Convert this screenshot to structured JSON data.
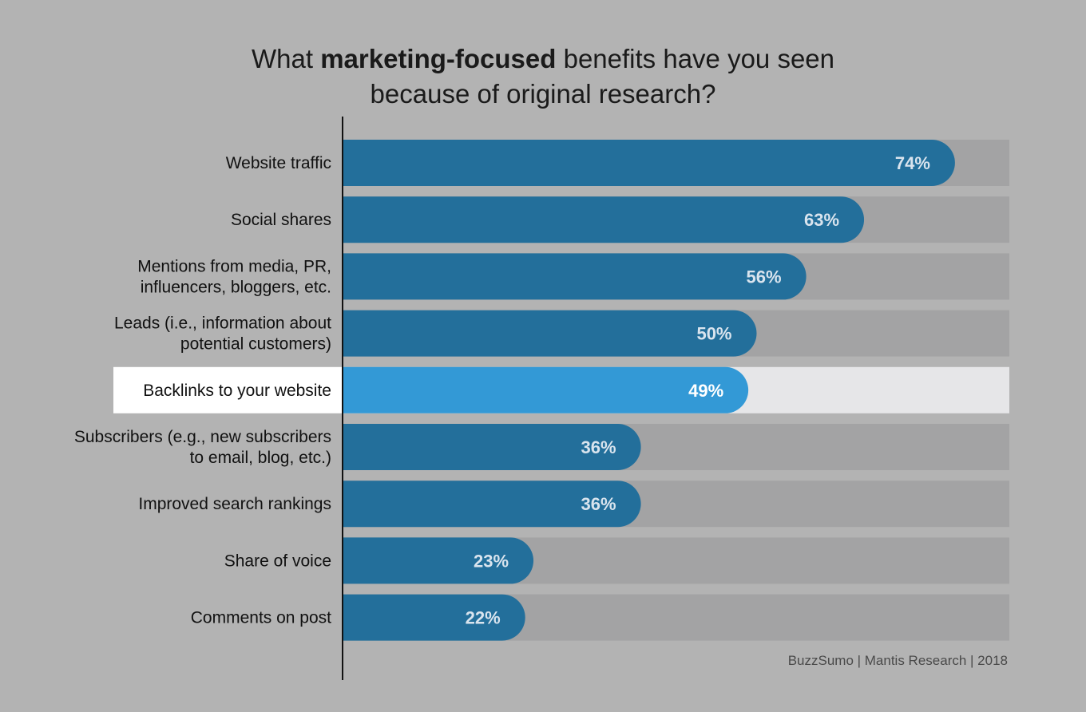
{
  "title": {
    "prefix": "What ",
    "bold": "marketing-focused",
    "suffix": " benefits have you seen",
    "line2": "because of original research?"
  },
  "source": "BuzzSumo | Mantis Research | 2018",
  "colors": {
    "background": "#b3b3b3",
    "track": "#a3a3a4",
    "bar": "#236f9b",
    "highlight_bar": "#3399d6",
    "highlight_track": "#e6e6e8",
    "highlight_label_bg": "#ffffff",
    "value_text": "#d9e4ee",
    "highlight_value_text": "#ffffff"
  },
  "chart_data": {
    "type": "bar",
    "orientation": "horizontal",
    "categories": [
      [
        "Website traffic"
      ],
      [
        "Social shares"
      ],
      [
        "Mentions from media, PR,",
        "influencers, bloggers, etc."
      ],
      [
        "Leads (i.e., information about",
        "potential customers)"
      ],
      [
        "Backlinks to your website"
      ],
      [
        "Subscribers (e.g., new subscribers",
        "to email, blog, etc.)"
      ],
      [
        "Improved search rankings"
      ],
      [
        "Share of voice"
      ],
      [
        "Comments on post"
      ]
    ],
    "values": [
      74,
      63,
      56,
      50,
      49,
      36,
      36,
      23,
      22
    ],
    "value_labels": [
      "74%",
      "63%",
      "56%",
      "50%",
      "49%",
      "36%",
      "36%",
      "23%",
      "22%"
    ],
    "highlighted_index": 4,
    "xlim": [
      0,
      100
    ],
    "grid": false,
    "xlabel": "",
    "ylabel": ""
  }
}
